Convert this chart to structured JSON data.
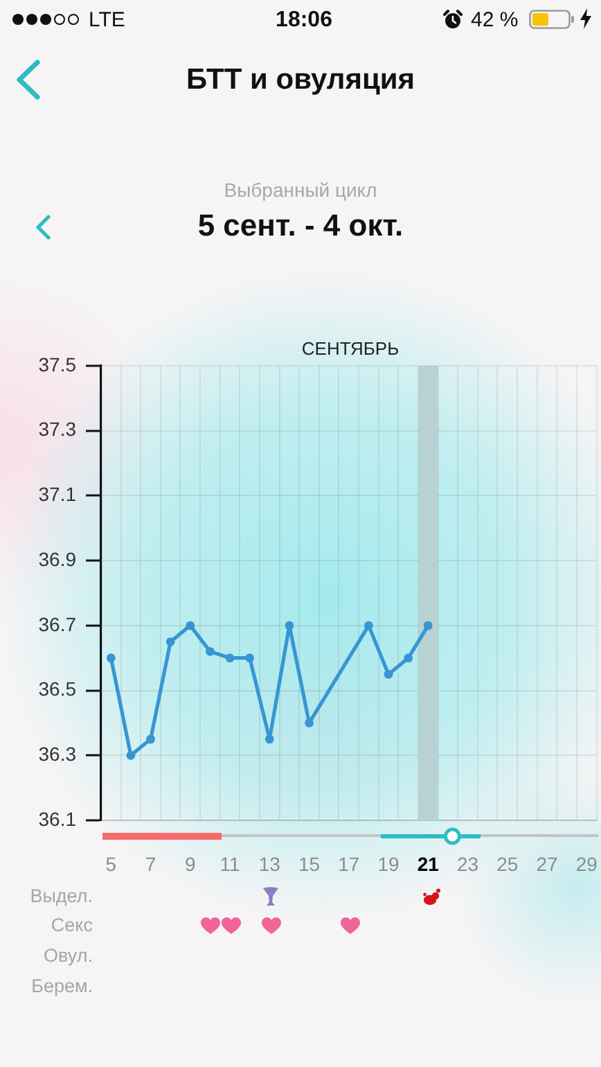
{
  "chart_data": {
    "type": "line",
    "title": "БТТ и овуляция",
    "subtitle": "5 сент. - 4 окт.",
    "annotations": [
      "LTE",
      "18:06",
      "42 %",
      "Выбранный цикл",
      "СЕНТЯБРЬ",
      "Выдел.",
      "Секс",
      "Овул.",
      "Берем."
    ],
    "x": [
      5,
      6,
      7,
      8,
      9,
      10,
      11,
      12,
      13,
      14,
      15,
      18,
      19,
      20,
      21
    ],
    "series": [
      {
        "color": "#3796d2",
        "values": [
          36.6,
          36.3,
          36.35,
          36.65,
          36.7,
          36.62,
          36.6,
          36.6,
          36.35,
          36.7,
          36.4,
          36.7,
          36.55,
          36.6,
          36.7
        ]
      }
    ],
    "xlim": [
      4.5,
      29.5
    ],
    "xticks": [
      5,
      {
        "value": 5.5,
        "label": null
      },
      {
        "value": 6.5,
        "label": null
      },
      7,
      {
        "value": 7.5,
        "label": null
      },
      {
        "value": 8.5,
        "label": null
      },
      9,
      {
        "value": 9.5,
        "label": null
      },
      {
        "value": 10.5,
        "label": null
      },
      11,
      {
        "value": 11.5,
        "label": null
      },
      {
        "value": 12.5,
        "label": null
      },
      13,
      {
        "value": 13.5,
        "label": null
      },
      {
        "value": 14.5,
        "label": null
      },
      15,
      {
        "value": 15.5,
        "label": null
      },
      {
        "value": 16.5,
        "label": null
      },
      17,
      {
        "value": 17.5,
        "label": null
      },
      {
        "value": 18.5,
        "label": null
      },
      19,
      {
        "value": 19.5,
        "label": null
      },
      {
        "value": 20.5,
        "label": null
      },
      21,
      {
        "value": 21.5,
        "label": null
      },
      {
        "value": 22.5,
        "label": null
      },
      23,
      {
        "value": 23.5,
        "label": null
      },
      {
        "value": 24.5,
        "label": null
      },
      25,
      {
        "value": 25.5,
        "label": null
      },
      {
        "value": 26.5,
        "label": null
      },
      27,
      {
        "value": 27.5,
        "label": null
      },
      {
        "value": 28.5,
        "label": null
      },
      29,
      {
        "value": 29.5,
        "label": null
      }
    ],
    "ylim": [
      36.1,
      37.5
    ],
    "yticks": [
      36.1,
      36.3,
      36.5,
      36.7,
      36.9,
      37.1,
      37.3,
      37.5
    ],
    "grid": true,
    "marker": "circle",
    "line_style": "solid",
    "bands": [
      {
        "axis": "x",
        "from": 20.5,
        "to": 21.5,
        "color": "#b8d2d3"
      }
    ]
  }
}
